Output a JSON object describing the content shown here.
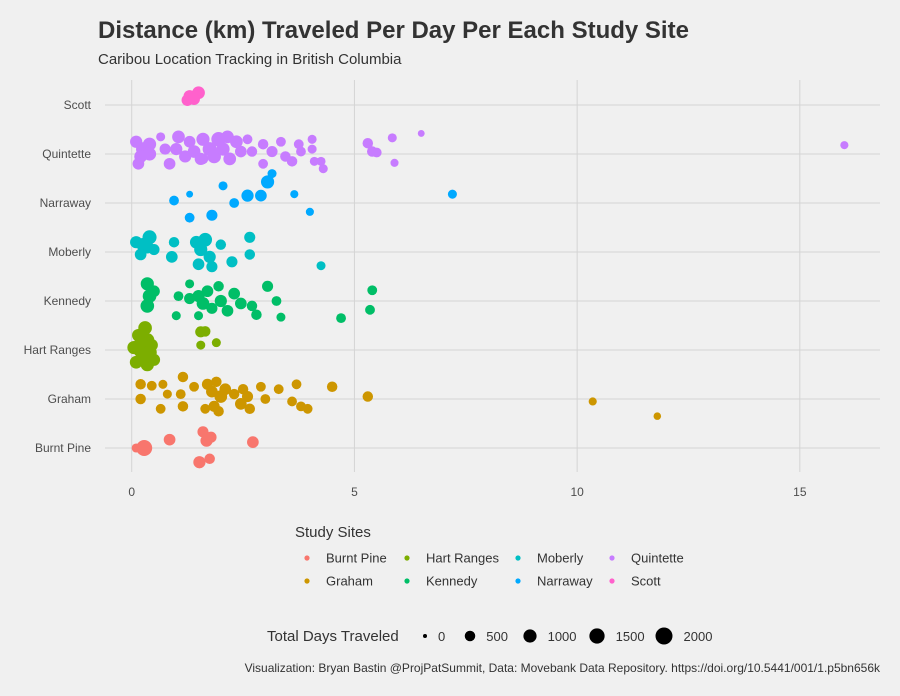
{
  "chart_data": {
    "type": "scatter",
    "title": "Distance (km) Traveled Per Day Per Each Study Site",
    "subtitle": "Caribou Location Tracking in British Columbia",
    "caption": "Visualization: Bryan Bastin @ProjPatSummit, Data: Movebank Data Repository. https://doi.org/10.5441/001/1.p5bn656k",
    "xlabel": "",
    "ylabel": "",
    "xlim": [
      -0.6,
      16.8
    ],
    "x_ticks": [
      "0",
      "5",
      "10",
      "15"
    ],
    "x_tick_values": [
      0,
      5,
      10,
      15
    ],
    "categories": [
      "Burnt Pine",
      "Graham",
      "Hart Ranges",
      "Kennedy",
      "Moberly",
      "Narraway",
      "Quintette",
      "Scott"
    ],
    "grid": true,
    "colors": {
      "Burnt Pine": "#F8766D",
      "Graham": "#CD9600",
      "Hart Ranges": "#7CAE00",
      "Kennedy": "#00BE67",
      "Moberly": "#00BFC4",
      "Narraway": "#00A9FF",
      "Quintette": "#C77CFF",
      "Scott": "#FF61CC"
    },
    "color_legend": {
      "title": "Study Sites",
      "position": "bottom",
      "entries": [
        "Burnt Pine",
        "Hart Ranges",
        "Moberly",
        "Quintette",
        "Graham",
        "Kennedy",
        "Narraway",
        "Scott"
      ]
    },
    "size_legend": {
      "title": "Total Days Traveled",
      "values": [
        0,
        500,
        1000,
        1500,
        2000
      ],
      "labels": [
        "0",
        "500",
        "1000",
        "1500",
        "2000"
      ]
    },
    "series": [
      {
        "name": "Burnt Pine",
        "points": [
          {
            "x": 0.1,
            "y": 0.0,
            "days": 300
          },
          {
            "x": 0.28,
            "y": 0.0,
            "days": 1700
          },
          {
            "x": 0.85,
            "y": 0.17,
            "days": 700
          },
          {
            "x": 1.6,
            "y": 0.33,
            "days": 600
          },
          {
            "x": 1.68,
            "y": 0.15,
            "days": 800
          },
          {
            "x": 1.78,
            "y": 0.22,
            "days": 600
          },
          {
            "x": 1.52,
            "y": -0.29,
            "days": 800
          },
          {
            "x": 1.75,
            "y": -0.22,
            "days": 500
          },
          {
            "x": 2.72,
            "y": 0.12,
            "days": 700
          }
        ]
      },
      {
        "name": "Graham",
        "points": [
          {
            "x": 0.2,
            "y": 0.3,
            "days": 500
          },
          {
            "x": 0.45,
            "y": 0.27,
            "days": 400
          },
          {
            "x": 0.2,
            "y": 0.0,
            "days": 500
          },
          {
            "x": 0.8,
            "y": 0.1,
            "days": 300
          },
          {
            "x": 1.1,
            "y": 0.1,
            "days": 400
          },
          {
            "x": 1.15,
            "y": 0.45,
            "days": 500
          },
          {
            "x": 0.7,
            "y": 0.3,
            "days": 300
          },
          {
            "x": 0.65,
            "y": -0.2,
            "days": 400
          },
          {
            "x": 1.15,
            "y": -0.15,
            "days": 500
          },
          {
            "x": 1.4,
            "y": 0.25,
            "days": 400
          },
          {
            "x": 1.7,
            "y": 0.3,
            "days": 600
          },
          {
            "x": 1.9,
            "y": 0.35,
            "days": 500
          },
          {
            "x": 1.8,
            "y": 0.15,
            "days": 700
          },
          {
            "x": 2.0,
            "y": 0.05,
            "days": 900
          },
          {
            "x": 2.1,
            "y": 0.2,
            "days": 700
          },
          {
            "x": 1.85,
            "y": -0.15,
            "days": 600
          },
          {
            "x": 1.95,
            "y": -0.25,
            "days": 500
          },
          {
            "x": 1.65,
            "y": -0.2,
            "days": 400
          },
          {
            "x": 2.3,
            "y": 0.1,
            "days": 500
          },
          {
            "x": 2.5,
            "y": 0.2,
            "days": 500
          },
          {
            "x": 2.6,
            "y": 0.05,
            "days": 600
          },
          {
            "x": 2.45,
            "y": -0.1,
            "days": 700
          },
          {
            "x": 2.65,
            "y": -0.2,
            "days": 500
          },
          {
            "x": 2.9,
            "y": 0.25,
            "days": 400
          },
          {
            "x": 3.0,
            "y": 0.0,
            "days": 400
          },
          {
            "x": 3.3,
            "y": 0.2,
            "days": 400
          },
          {
            "x": 3.7,
            "y": 0.3,
            "days": 400
          },
          {
            "x": 3.6,
            "y": -0.05,
            "days": 400
          },
          {
            "x": 3.95,
            "y": -0.2,
            "days": 400
          },
          {
            "x": 3.8,
            "y": -0.15,
            "days": 400
          },
          {
            "x": 4.5,
            "y": 0.25,
            "days": 500
          },
          {
            "x": 5.3,
            "y": 0.05,
            "days": 500
          },
          {
            "x": 10.35,
            "y": -0.05,
            "days": 200
          },
          {
            "x": 11.8,
            "y": -0.35,
            "days": 150
          }
        ]
      },
      {
        "name": "Hart Ranges",
        "points": [
          {
            "x": 0.3,
            "y": 0.45,
            "days": 1100
          },
          {
            "x": 0.15,
            "y": 0.3,
            "days": 900
          },
          {
            "x": 0.35,
            "y": 0.2,
            "days": 1200
          },
          {
            "x": 0.05,
            "y": 0.05,
            "days": 1000
          },
          {
            "x": 0.2,
            "y": 0.0,
            "days": 1400
          },
          {
            "x": 0.4,
            "y": -0.05,
            "days": 1300
          },
          {
            "x": 0.25,
            "y": -0.15,
            "days": 1100
          },
          {
            "x": 0.1,
            "y": -0.25,
            "days": 900
          },
          {
            "x": 0.35,
            "y": -0.3,
            "days": 1000
          },
          {
            "x": 0.45,
            "y": 0.1,
            "days": 800
          },
          {
            "x": 0.2,
            "y": 0.15,
            "days": 900
          },
          {
            "x": 0.5,
            "y": -0.2,
            "days": 800
          },
          {
            "x": 1.55,
            "y": 0.37,
            "days": 600
          },
          {
            "x": 1.65,
            "y": 0.38,
            "days": 500
          },
          {
            "x": 1.55,
            "y": 0.1,
            "days": 300
          },
          {
            "x": 1.9,
            "y": 0.15,
            "days": 300
          }
        ]
      },
      {
        "name": "Kennedy",
        "points": [
          {
            "x": 0.35,
            "y": 0.35,
            "days": 1000
          },
          {
            "x": 0.4,
            "y": 0.1,
            "days": 1100
          },
          {
            "x": 0.35,
            "y": -0.1,
            "days": 1100
          },
          {
            "x": 0.5,
            "y": 0.2,
            "days": 700
          },
          {
            "x": 1.05,
            "y": 0.1,
            "days": 400
          },
          {
            "x": 1.3,
            "y": 0.05,
            "days": 600
          },
          {
            "x": 1.5,
            "y": 0.1,
            "days": 800
          },
          {
            "x": 1.6,
            "y": -0.05,
            "days": 900
          },
          {
            "x": 1.7,
            "y": 0.2,
            "days": 700
          },
          {
            "x": 1.8,
            "y": -0.15,
            "days": 600
          },
          {
            "x": 1.95,
            "y": 0.3,
            "days": 500
          },
          {
            "x": 2.0,
            "y": 0.0,
            "days": 800
          },
          {
            "x": 2.15,
            "y": -0.2,
            "days": 700
          },
          {
            "x": 2.3,
            "y": 0.15,
            "days": 700
          },
          {
            "x": 2.45,
            "y": -0.05,
            "days": 700
          },
          {
            "x": 1.3,
            "y": 0.35,
            "days": 300
          },
          {
            "x": 1.5,
            "y": -0.3,
            "days": 300
          },
          {
            "x": 1.0,
            "y": -0.3,
            "days": 300
          },
          {
            "x": 2.7,
            "y": -0.1,
            "days": 500
          },
          {
            "x": 2.8,
            "y": -0.28,
            "days": 500
          },
          {
            "x": 3.05,
            "y": 0.3,
            "days": 600
          },
          {
            "x": 3.25,
            "y": 0.0,
            "days": 400
          },
          {
            "x": 3.35,
            "y": -0.33,
            "days": 300
          },
          {
            "x": 4.7,
            "y": -0.35,
            "days": 400
          },
          {
            "x": 5.4,
            "y": 0.22,
            "days": 400
          },
          {
            "x": 5.35,
            "y": -0.18,
            "days": 400
          }
        ]
      },
      {
        "name": "Moberly",
        "points": [
          {
            "x": 0.1,
            "y": 0.2,
            "days": 800
          },
          {
            "x": 0.25,
            "y": 0.15,
            "days": 1000
          },
          {
            "x": 0.4,
            "y": 0.3,
            "days": 1200
          },
          {
            "x": 0.35,
            "y": 0.1,
            "days": 900
          },
          {
            "x": 0.2,
            "y": -0.05,
            "days": 700
          },
          {
            "x": 0.5,
            "y": 0.05,
            "days": 600
          },
          {
            "x": 0.9,
            "y": -0.1,
            "days": 700
          },
          {
            "x": 0.95,
            "y": 0.2,
            "days": 500
          },
          {
            "x": 1.45,
            "y": 0.2,
            "days": 900
          },
          {
            "x": 1.55,
            "y": 0.05,
            "days": 1000
          },
          {
            "x": 1.65,
            "y": 0.25,
            "days": 1100
          },
          {
            "x": 1.75,
            "y": -0.1,
            "days": 800
          },
          {
            "x": 1.5,
            "y": -0.25,
            "days": 700
          },
          {
            "x": 1.8,
            "y": -0.3,
            "days": 600
          },
          {
            "x": 2.0,
            "y": 0.15,
            "days": 500
          },
          {
            "x": 2.25,
            "y": -0.2,
            "days": 600
          },
          {
            "x": 2.65,
            "y": 0.3,
            "days": 600
          },
          {
            "x": 2.65,
            "y": -0.05,
            "days": 500
          },
          {
            "x": 4.25,
            "y": -0.28,
            "days": 300
          }
        ]
      },
      {
        "name": "Narraway",
        "points": [
          {
            "x": 1.3,
            "y": 0.18,
            "days": 100
          },
          {
            "x": 0.95,
            "y": 0.05,
            "days": 400
          },
          {
            "x": 1.3,
            "y": -0.3,
            "days": 400
          },
          {
            "x": 1.8,
            "y": -0.25,
            "days": 600
          },
          {
            "x": 2.05,
            "y": 0.35,
            "days": 300
          },
          {
            "x": 2.3,
            "y": 0.0,
            "days": 400
          },
          {
            "x": 2.6,
            "y": 0.15,
            "days": 800
          },
          {
            "x": 2.9,
            "y": 0.15,
            "days": 700
          },
          {
            "x": 3.05,
            "y": 0.43,
            "days": 1000
          },
          {
            "x": 3.15,
            "y": 0.6,
            "days": 300
          },
          {
            "x": 3.65,
            "y": 0.18,
            "days": 200
          },
          {
            "x": 4.0,
            "y": -0.18,
            "days": 200
          },
          {
            "x": 7.2,
            "y": 0.18,
            "days": 300
          }
        ]
      },
      {
        "name": "Quintette",
        "points": [
          {
            "x": 0.1,
            "y": 0.25,
            "days": 800
          },
          {
            "x": 0.25,
            "y": 0.1,
            "days": 1100
          },
          {
            "x": 0.4,
            "y": 0.2,
            "days": 1000
          },
          {
            "x": 0.2,
            "y": -0.05,
            "days": 900
          },
          {
            "x": 0.4,
            "y": 0.0,
            "days": 1000
          },
          {
            "x": 0.15,
            "y": -0.2,
            "days": 700
          },
          {
            "x": 0.65,
            "y": 0.35,
            "days": 300
          },
          {
            "x": 0.75,
            "y": 0.1,
            "days": 600
          },
          {
            "x": 0.85,
            "y": -0.2,
            "days": 700
          },
          {
            "x": 1.0,
            "y": 0.1,
            "days": 800
          },
          {
            "x": 1.05,
            "y": 0.35,
            "days": 900
          },
          {
            "x": 1.2,
            "y": -0.05,
            "days": 800
          },
          {
            "x": 1.3,
            "y": 0.25,
            "days": 700
          },
          {
            "x": 1.4,
            "y": 0.05,
            "days": 900
          },
          {
            "x": 1.55,
            "y": -0.1,
            "days": 800
          },
          {
            "x": 1.6,
            "y": 0.3,
            "days": 1000
          },
          {
            "x": 1.75,
            "y": 0.1,
            "days": 1200
          },
          {
            "x": 1.85,
            "y": -0.05,
            "days": 1100
          },
          {
            "x": 1.95,
            "y": 0.3,
            "days": 1300
          },
          {
            "x": 2.05,
            "y": 0.1,
            "days": 1000
          },
          {
            "x": 2.15,
            "y": 0.35,
            "days": 900
          },
          {
            "x": 2.2,
            "y": -0.1,
            "days": 900
          },
          {
            "x": 2.35,
            "y": 0.25,
            "days": 900
          },
          {
            "x": 2.45,
            "y": 0.05,
            "days": 700
          },
          {
            "x": 1.6,
            "y": -0.1,
            "days": 500
          },
          {
            "x": 2.6,
            "y": 0.3,
            "days": 400
          },
          {
            "x": 2.7,
            "y": 0.05,
            "days": 500
          },
          {
            "x": 2.95,
            "y": 0.2,
            "days": 500
          },
          {
            "x": 2.95,
            "y": -0.2,
            "days": 400
          },
          {
            "x": 3.15,
            "y": 0.05,
            "days": 600
          },
          {
            "x": 3.35,
            "y": 0.25,
            "days": 400
          },
          {
            "x": 3.45,
            "y": -0.05,
            "days": 500
          },
          {
            "x": 3.6,
            "y": -0.15,
            "days": 500
          },
          {
            "x": 3.75,
            "y": 0.2,
            "days": 400
          },
          {
            "x": 3.8,
            "y": 0.05,
            "days": 400
          },
          {
            "x": 4.05,
            "y": 0.1,
            "days": 300
          },
          {
            "x": 4.05,
            "y": 0.3,
            "days": 300
          },
          {
            "x": 4.1,
            "y": -0.15,
            "days": 300
          },
          {
            "x": 4.25,
            "y": -0.15,
            "days": 300
          },
          {
            "x": 4.3,
            "y": -0.3,
            "days": 300
          },
          {
            "x": 5.3,
            "y": 0.22,
            "days": 500
          },
          {
            "x": 5.4,
            "y": 0.05,
            "days": 500
          },
          {
            "x": 5.5,
            "y": 0.03,
            "days": 400
          },
          {
            "x": 5.85,
            "y": 0.33,
            "days": 300
          },
          {
            "x": 5.9,
            "y": -0.18,
            "days": 200
          },
          {
            "x": 6.5,
            "y": 0.42,
            "days": 100
          },
          {
            "x": 16.0,
            "y": 0.18,
            "days": 200
          }
        ]
      },
      {
        "name": "Scott",
        "points": [
          {
            "x": 1.25,
            "y": 0.1,
            "days": 700
          },
          {
            "x": 1.3,
            "y": 0.18,
            "days": 800
          },
          {
            "x": 1.5,
            "y": 0.25,
            "days": 900
          },
          {
            "x": 1.4,
            "y": 0.12,
            "days": 700
          }
        ]
      }
    ]
  }
}
